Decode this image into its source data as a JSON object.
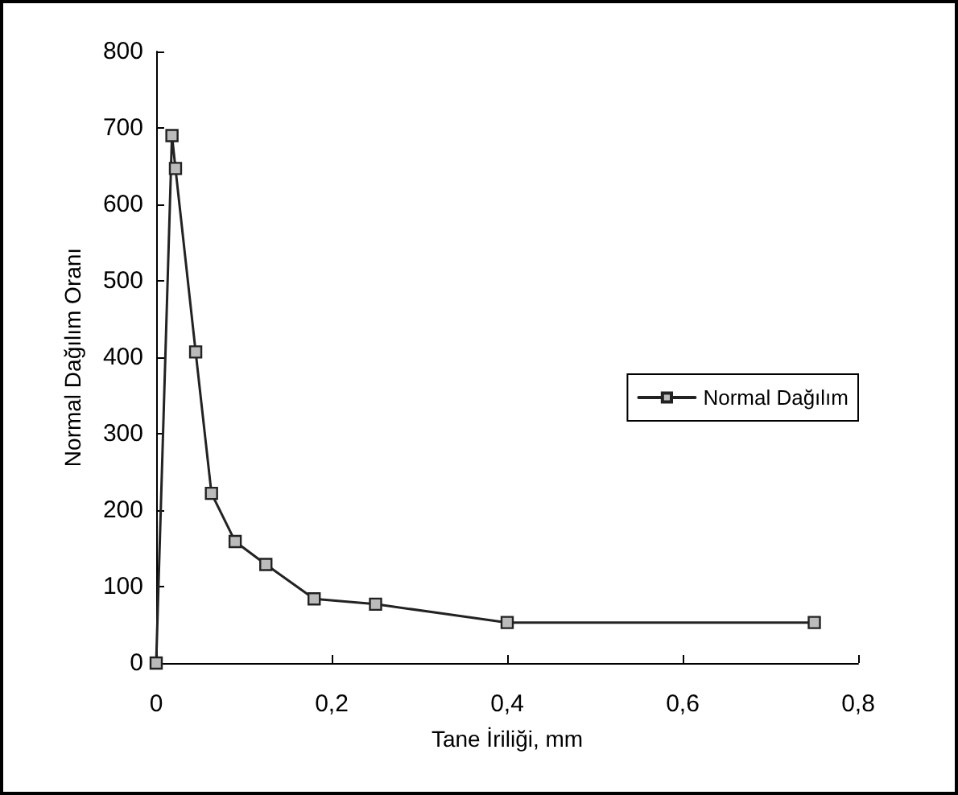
{
  "chart_data": {
    "type": "line",
    "xlabel": "Tane İriliği, mm",
    "ylabel": "Normal Dağılım Oranı",
    "series": [
      {
        "name": "Normal Dağılım",
        "color": "#222222",
        "x": [
          0,
          0.018,
          0.022,
          0.045,
          0.063,
          0.09,
          0.125,
          0.18,
          0.25,
          0.4,
          0.75
        ],
        "values": [
          0,
          690,
          647,
          407,
          222,
          159,
          129,
          84,
          77,
          53,
          53
        ]
      }
    ],
    "xlim": [
      0,
      0.8
    ],
    "xticks": [
      {
        "value": 0,
        "label": "0"
      },
      {
        "value": 0.2,
        "label": "0,2"
      },
      {
        "value": 0.4,
        "label": "0,4"
      },
      {
        "value": 0.6,
        "label": "0,6"
      },
      {
        "value": 0.8,
        "label": "0,8"
      }
    ],
    "ylim": [
      0,
      800
    ],
    "yticks": [
      0,
      100,
      200,
      300,
      400,
      500,
      600,
      700,
      800
    ],
    "grid": false,
    "legend": "right",
    "marker": "square",
    "line_style": "solid"
  }
}
